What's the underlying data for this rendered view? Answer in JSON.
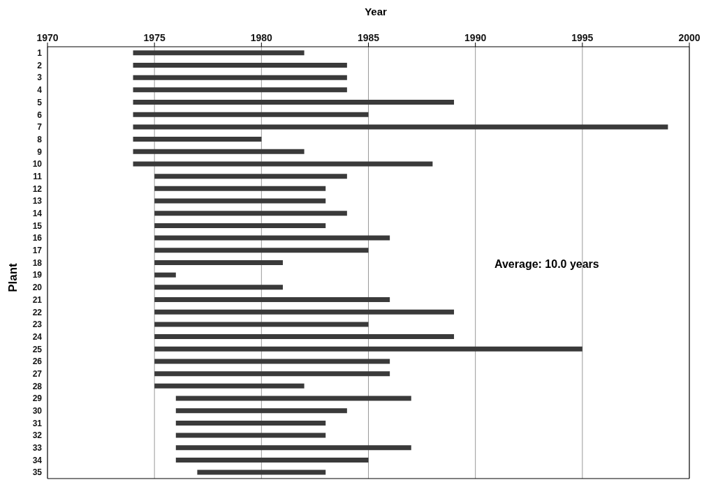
{
  "chart_data": {
    "type": "bar",
    "orientation": "horizontal",
    "xlabel": "Year",
    "ylabel": "Plant",
    "categories": [
      "1",
      "2",
      "3",
      "4",
      "5",
      "6",
      "7",
      "8",
      "9",
      "10",
      "11",
      "12",
      "13",
      "14",
      "15",
      "16",
      "17",
      "18",
      "19",
      "20",
      "21",
      "22",
      "23",
      "24",
      "25",
      "26",
      "27",
      "28",
      "29",
      "30",
      "31",
      "32",
      "33",
      "34",
      "35"
    ],
    "base": [
      1974,
      1974,
      1974,
      1974,
      1974,
      1974,
      1974,
      1974,
      1974,
      1974,
      1975,
      1975,
      1975,
      1975,
      1975,
      1975,
      1975,
      1975,
      1975,
      1975,
      1975,
      1975,
      1975,
      1975,
      1975,
      1975,
      1975,
      1975,
      1976,
      1976,
      1976,
      1976,
      1976,
      1976,
      1977
    ],
    "values": [
      8,
      10,
      10,
      10,
      15,
      11,
      25,
      6,
      8,
      14,
      9,
      8,
      8,
      9,
      8,
      11,
      10,
      6,
      1,
      6,
      11,
      14,
      10,
      14,
      20,
      11,
      11,
      7,
      11,
      8,
      7,
      7,
      11,
      9,
      6
    ],
    "color": "#3a3a3a",
    "xlim": [
      1970,
      2000
    ],
    "xticks": [
      1970,
      1975,
      1980,
      1985,
      1990,
      1995,
      2000
    ],
    "grid": "x",
    "annotations": [
      "Average: 10.0 years"
    ]
  }
}
